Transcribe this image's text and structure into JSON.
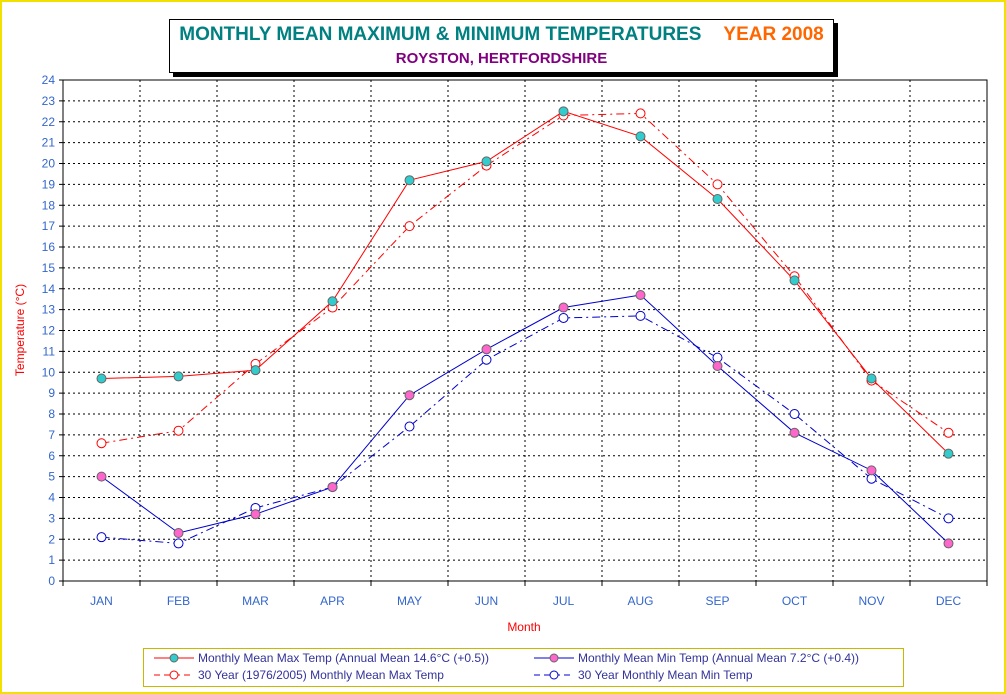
{
  "title": {
    "main": "MONTHLY  MEAN MAXIMUM & MINIMUM TEMPERATURES",
    "year": "YEAR 2008",
    "subtitle": "ROYSTON, HERTFORDSHIRE"
  },
  "colors": {
    "background": "#ffff00",
    "max_series": "#ff0000",
    "min_series": "#0000cc",
    "max_marker_fill": "#33cccc",
    "min_marker_fill": "#ff66cc",
    "axis_text": "#3366cc",
    "axis_title": "#ff0000",
    "title_teal": "#008080",
    "title_orange": "#ff6600",
    "subtitle_purple": "#800080"
  },
  "chart_data": {
    "type": "line",
    "xlabel": "Month",
    "ylabel": "Temperature (°C)",
    "categories": [
      "JAN",
      "FEB",
      "MAR",
      "APR",
      "MAY",
      "JUN",
      "JUL",
      "AUG",
      "SEP",
      "OCT",
      "NOV",
      "DEC"
    ],
    "ylim": [
      0,
      24
    ],
    "yticks": [
      0,
      1,
      2,
      3,
      4,
      5,
      6,
      7,
      8,
      9,
      10,
      11,
      12,
      13,
      14,
      15,
      16,
      17,
      18,
      19,
      20,
      21,
      22,
      23,
      24
    ],
    "grid": true,
    "legend_position": "bottom",
    "series": [
      {
        "name": "Monthly Mean Max Temp (Annual Mean 14.6°C (+0.5))",
        "style": "solid",
        "color": "#ff0000",
        "marker_fill": "#33cccc",
        "values": [
          9.7,
          9.8,
          10.1,
          13.4,
          19.2,
          20.1,
          22.5,
          21.3,
          18.3,
          14.4,
          9.7,
          6.1
        ]
      },
      {
        "name": "Monthly Mean Min Temp (Annual Mean 7.2°C (+0.4))",
        "style": "solid",
        "color": "#0000cc",
        "marker_fill": "#ff66cc",
        "values": [
          5.0,
          2.3,
          3.2,
          4.5,
          8.9,
          11.1,
          13.1,
          13.7,
          10.3,
          7.1,
          5.3,
          1.8
        ]
      },
      {
        "name": "30 Year (1976/2005) Monthly Mean Max Temp",
        "style": "dashed",
        "color": "#ff0000",
        "marker_fill": "#ffffff",
        "values": [
          6.6,
          7.2,
          10.4,
          13.1,
          17.0,
          19.9,
          22.3,
          22.4,
          19.0,
          14.6,
          9.6,
          7.1
        ]
      },
      {
        "name": "30 Year Monthly Mean Min Temp",
        "style": "dashed",
        "color": "#0000cc",
        "marker_fill": "#ffffff",
        "values": [
          2.1,
          1.8,
          3.5,
          4.5,
          7.4,
          10.6,
          12.6,
          12.7,
          10.7,
          8.0,
          4.9,
          3.0
        ]
      }
    ]
  },
  "legend": {
    "items": [
      "Monthly Mean Max Temp (Annual Mean 14.6°C (+0.5))",
      "Monthly Mean Min Temp (Annual Mean 7.2°C (+0.4))",
      "30 Year (1976/2005) Monthly Mean Max Temp",
      "30 Year Monthly Mean Min Temp"
    ]
  }
}
